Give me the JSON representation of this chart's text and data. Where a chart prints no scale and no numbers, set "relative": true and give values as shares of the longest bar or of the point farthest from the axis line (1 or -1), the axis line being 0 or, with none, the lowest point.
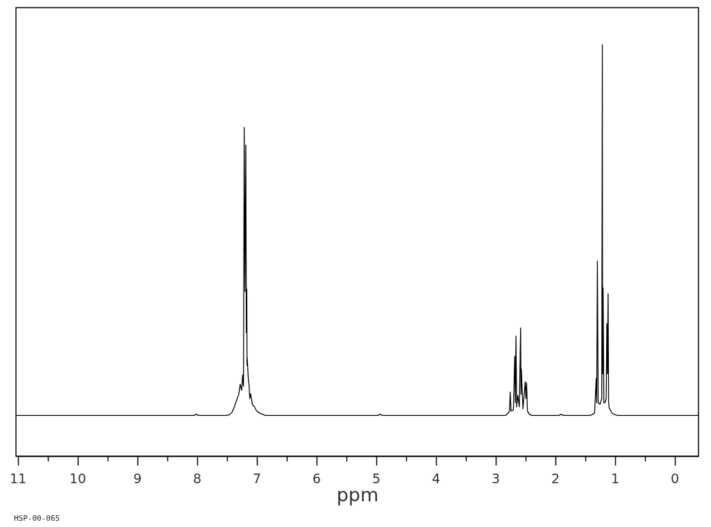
{
  "chart_data": {
    "type": "line",
    "relative": true,
    "xlabel": "ppm",
    "annotations": [
      "HSP-00-065"
    ],
    "color": "#000000",
    "xlim": [
      11.03,
      -0.4
    ],
    "xticks": [
      11,
      {
        "value": 10.5,
        "label": null
      },
      10,
      {
        "value": 9.5,
        "label": null
      },
      9,
      {
        "value": 8.5,
        "label": null
      },
      8,
      {
        "value": 7.5,
        "label": null
      },
      7,
      {
        "value": 6.5,
        "label": null
      },
      6,
      {
        "value": 5.5,
        "label": null
      },
      5,
      {
        "value": 4.5,
        "label": null
      },
      4,
      {
        "value": 3.5,
        "label": null
      },
      3,
      {
        "value": 2.5,
        "label": null
      },
      2,
      {
        "value": 1.5,
        "label": null
      },
      1,
      {
        "value": 0.5,
        "label": null
      },
      0
    ],
    "x": [
      11.03,
      8.05,
      8.01,
      7.97,
      7.5,
      7.45,
      7.41,
      7.37,
      7.33,
      7.3,
      7.274,
      7.25,
      7.235,
      7.22,
      7.208,
      7.195,
      7.181,
      7.172,
      7.165,
      7.16,
      7.157,
      7.14,
      7.127,
      7.115,
      7.1,
      7.07,
      7.04,
      7.0,
      6.94,
      6.89,
      6.85,
      4.97,
      4.93,
      4.89,
      2.83,
      2.79,
      2.765,
      2.753,
      2.74,
      2.7,
      2.677,
      2.667,
      2.657,
      2.645,
      2.626,
      2.6,
      2.579,
      2.572,
      2.567,
      2.54,
      2.502,
      2.49,
      2.479,
      2.465,
      2.43,
      2.38,
      1.94,
      1.9,
      1.86,
      1.42,
      1.38,
      1.34,
      1.313,
      1.305,
      1.293,
      1.28,
      1.25,
      1.22,
      1.21,
      1.206,
      1.198,
      1.185,
      1.166,
      1.145,
      1.135,
      1.125,
      1.114,
      1.105,
      1.095,
      1.05,
      1.0,
      0.95,
      -0.4
    ],
    "values": [
      0.099,
      0.099,
      0.102,
      0.099,
      0.099,
      0.101,
      0.107,
      0.121,
      0.138,
      0.15,
      0.175,
      0.16,
      0.197,
      0.17,
      0.799,
      0.4,
      0.756,
      0.3,
      0.406,
      0.22,
      0.239,
      0.19,
      0.175,
      0.14,
      0.152,
      0.125,
      0.121,
      0.11,
      0.104,
      0.101,
      0.099,
      0.099,
      0.102,
      0.099,
      0.099,
      0.104,
      0.11,
      0.156,
      0.11,
      0.112,
      0.243,
      0.13,
      0.292,
      0.12,
      0.148,
      0.12,
      0.312,
      0.15,
      0.212,
      0.115,
      0.181,
      0.14,
      0.178,
      0.11,
      0.101,
      0.099,
      0.099,
      0.102,
      0.099,
      0.099,
      0.101,
      0.105,
      0.189,
      0.13,
      0.474,
      0.13,
      0.126,
      0.14,
      1.0,
      0.2,
      0.409,
      0.13,
      0.13,
      0.14,
      0.322,
      0.2,
      0.395,
      0.13,
      0.117,
      0.105,
      0.101,
      0.099,
      0.099
    ]
  }
}
